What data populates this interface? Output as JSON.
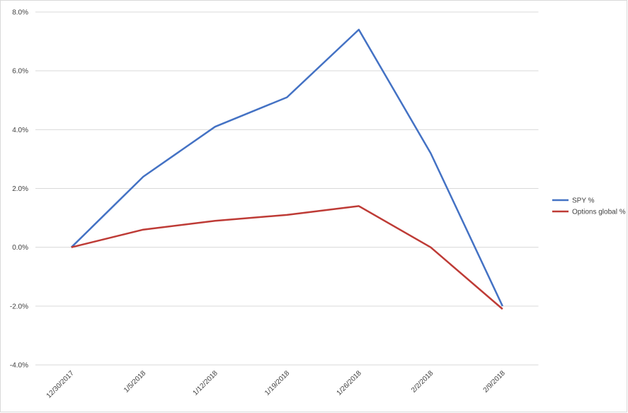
{
  "chart_data": {
    "type": "line",
    "categories": [
      "12/30/2017",
      "1/5/2018",
      "1/12/2018",
      "1/19/2018",
      "1/26/2018",
      "2/2/2018",
      "2/9/2018"
    ],
    "series": [
      {
        "name": "SPY %",
        "color": "#4472c4",
        "values": [
          0,
          2.4,
          4.1,
          5.1,
          7.4,
          3.2,
          -2.0
        ]
      },
      {
        "name": "Options global %",
        "color": "#be3b36",
        "values": [
          0,
          0.6,
          0.9,
          1.1,
          1.4,
          0.0,
          -2.1
        ]
      }
    ],
    "ylim": [
      -4,
      8
    ],
    "yticks": [
      {
        "value": -4,
        "label": "-4.0%"
      },
      {
        "value": -2,
        "label": "-2.0%"
      },
      {
        "value": 0,
        "label": "0.0%"
      },
      {
        "value": 2,
        "label": "2.0%"
      },
      {
        "value": 4,
        "label": "4.0%"
      },
      {
        "value": 6,
        "label": "6.0%"
      },
      {
        "value": 8,
        "label": "8.0%"
      }
    ],
    "grid": true,
    "legend": "right"
  }
}
